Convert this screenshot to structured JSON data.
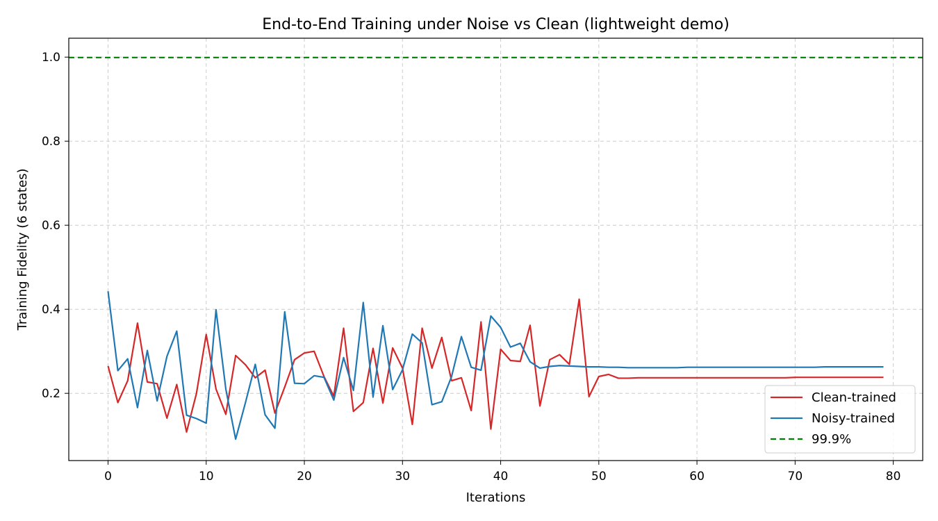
{
  "chart_data": {
    "type": "line",
    "title": "End-to-End Training under Noise vs Clean (lightweight demo)",
    "xlabel": "Iterations",
    "ylabel": "Training Fidelity (6 states)",
    "xlim": [
      -4,
      83
    ],
    "ylim": [
      0.04,
      1.045
    ],
    "xticks": [
      0,
      10,
      20,
      30,
      40,
      50,
      60,
      70,
      80
    ],
    "yticks": [
      0.2,
      0.4,
      0.6,
      0.8,
      1.0
    ],
    "xtick_labels": [
      "0",
      "10",
      "20",
      "30",
      "40",
      "50",
      "60",
      "70",
      "80"
    ],
    "ytick_labels": [
      "0.2",
      "0.4",
      "0.6",
      "0.8",
      "1.0"
    ],
    "grid": true,
    "legend_position": "lower-right",
    "series": [
      {
        "name": "Clean-trained",
        "color": "#d62728",
        "style": "solid",
        "x": [
          0,
          1,
          2,
          3,
          4,
          5,
          6,
          7,
          8,
          9,
          10,
          11,
          12,
          13,
          14,
          15,
          16,
          17,
          18,
          19,
          20,
          21,
          22,
          23,
          24,
          25,
          26,
          27,
          28,
          29,
          30,
          31,
          32,
          33,
          34,
          35,
          36,
          37,
          38,
          39,
          40,
          41,
          42,
          43,
          44,
          45,
          46,
          47,
          48,
          49,
          50,
          51,
          52,
          53,
          54,
          55,
          56,
          57,
          58,
          59,
          60,
          61,
          62,
          63,
          64,
          65,
          66,
          67,
          68,
          69,
          70,
          71,
          72,
          73,
          74,
          75,
          76,
          77,
          78,
          79
        ],
        "values": [
          0.265,
          0.178,
          0.23,
          0.367,
          0.227,
          0.223,
          0.141,
          0.221,
          0.108,
          0.199,
          0.34,
          0.21,
          0.15,
          0.29,
          0.268,
          0.237,
          0.255,
          0.153,
          0.215,
          0.28,
          0.296,
          0.3,
          0.24,
          0.193,
          0.355,
          0.157,
          0.178,
          0.307,
          0.177,
          0.308,
          0.26,
          0.126,
          0.355,
          0.26,
          0.333,
          0.23,
          0.237,
          0.159,
          0.37,
          0.115,
          0.305,
          0.278,
          0.276,
          0.362,
          0.17,
          0.28,
          0.292,
          0.269,
          0.424,
          0.192,
          0.24,
          0.245,
          0.236,
          0.236,
          0.237,
          0.237,
          0.237,
          0.237,
          0.237,
          0.237,
          0.237,
          0.237,
          0.237,
          0.237,
          0.237,
          0.237,
          0.237,
          0.237,
          0.237,
          0.237,
          0.238,
          0.238,
          0.238,
          0.238,
          0.238,
          0.238,
          0.238,
          0.238,
          0.238,
          0.238
        ]
      },
      {
        "name": "Noisy-trained",
        "color": "#1f77b4",
        "style": "solid",
        "x": [
          0,
          1,
          2,
          3,
          4,
          5,
          6,
          7,
          8,
          9,
          10,
          11,
          12,
          13,
          14,
          15,
          16,
          17,
          18,
          19,
          20,
          21,
          22,
          23,
          24,
          25,
          26,
          27,
          28,
          29,
          30,
          31,
          32,
          33,
          34,
          35,
          36,
          37,
          38,
          39,
          40,
          41,
          42,
          43,
          44,
          45,
          46,
          47,
          48,
          49,
          50,
          51,
          52,
          53,
          54,
          55,
          56,
          57,
          58,
          59,
          60,
          61,
          62,
          63,
          64,
          65,
          66,
          67,
          68,
          69,
          70,
          71,
          72,
          73,
          74,
          75,
          76,
          77,
          78,
          79
        ],
        "values": [
          0.443,
          0.254,
          0.282,
          0.166,
          0.302,
          0.182,
          0.288,
          0.348,
          0.148,
          0.14,
          0.129,
          0.399,
          0.21,
          0.091,
          0.178,
          0.269,
          0.149,
          0.117,
          0.394,
          0.224,
          0.223,
          0.242,
          0.238,
          0.184,
          0.285,
          0.207,
          0.416,
          0.191,
          0.361,
          0.209,
          0.256,
          0.341,
          0.32,
          0.173,
          0.18,
          0.24,
          0.335,
          0.262,
          0.255,
          0.384,
          0.357,
          0.31,
          0.319,
          0.275,
          0.26,
          0.264,
          0.266,
          0.265,
          0.264,
          0.263,
          0.263,
          0.262,
          0.262,
          0.261,
          0.261,
          0.261,
          0.261,
          0.261,
          0.261,
          0.262,
          0.262,
          0.262,
          0.262,
          0.262,
          0.262,
          0.262,
          0.262,
          0.262,
          0.262,
          0.262,
          0.262,
          0.262,
          0.262,
          0.263,
          0.263,
          0.263,
          0.263,
          0.263,
          0.263,
          0.263
        ]
      },
      {
        "name": "99.9%",
        "color": "#008000",
        "style": "dashed",
        "hline": 0.999
      }
    ]
  }
}
